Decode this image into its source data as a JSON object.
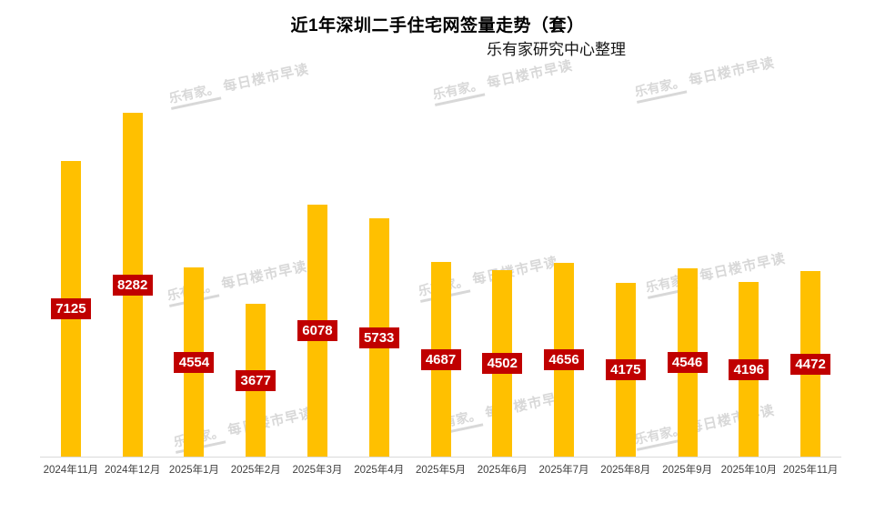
{
  "header": {
    "title": "近1年深圳二手住宅网签量走势（套）",
    "subtitle": "乐有家研究中心整理"
  },
  "watermark": {
    "logo": "乐有家。",
    "text": "每日楼市早读",
    "color": "#d8d8d8"
  },
  "chart_data": {
    "type": "bar",
    "title": "近1年深圳二手住宅网签量走势（套）",
    "subtitle": "乐有家研究中心整理",
    "categories": [
      "2024年11月",
      "2024年12月",
      "2025年1月",
      "2025年2月",
      "2025年3月",
      "2025年4月",
      "2025年5月",
      "2025年6月",
      "2025年7月",
      "2025年8月",
      "2025年9月",
      "2025年10月",
      "2025年11月"
    ],
    "values": [
      7125,
      8282,
      4554,
      3677,
      6078,
      5733,
      4687,
      4502,
      4656,
      4175,
      4546,
      4196,
      4472
    ],
    "xlabel": "",
    "ylabel": "",
    "ylim": [
      0,
      9700
    ],
    "grid": false,
    "legend": false,
    "y_axis_visible": false,
    "bar_color": "#FFC000",
    "label_bg_color": "#C00000",
    "label_text_color": "#FFFFFF",
    "axis_line_color": "#D9D9D9",
    "tick_label_color": "#3F3F3F"
  }
}
